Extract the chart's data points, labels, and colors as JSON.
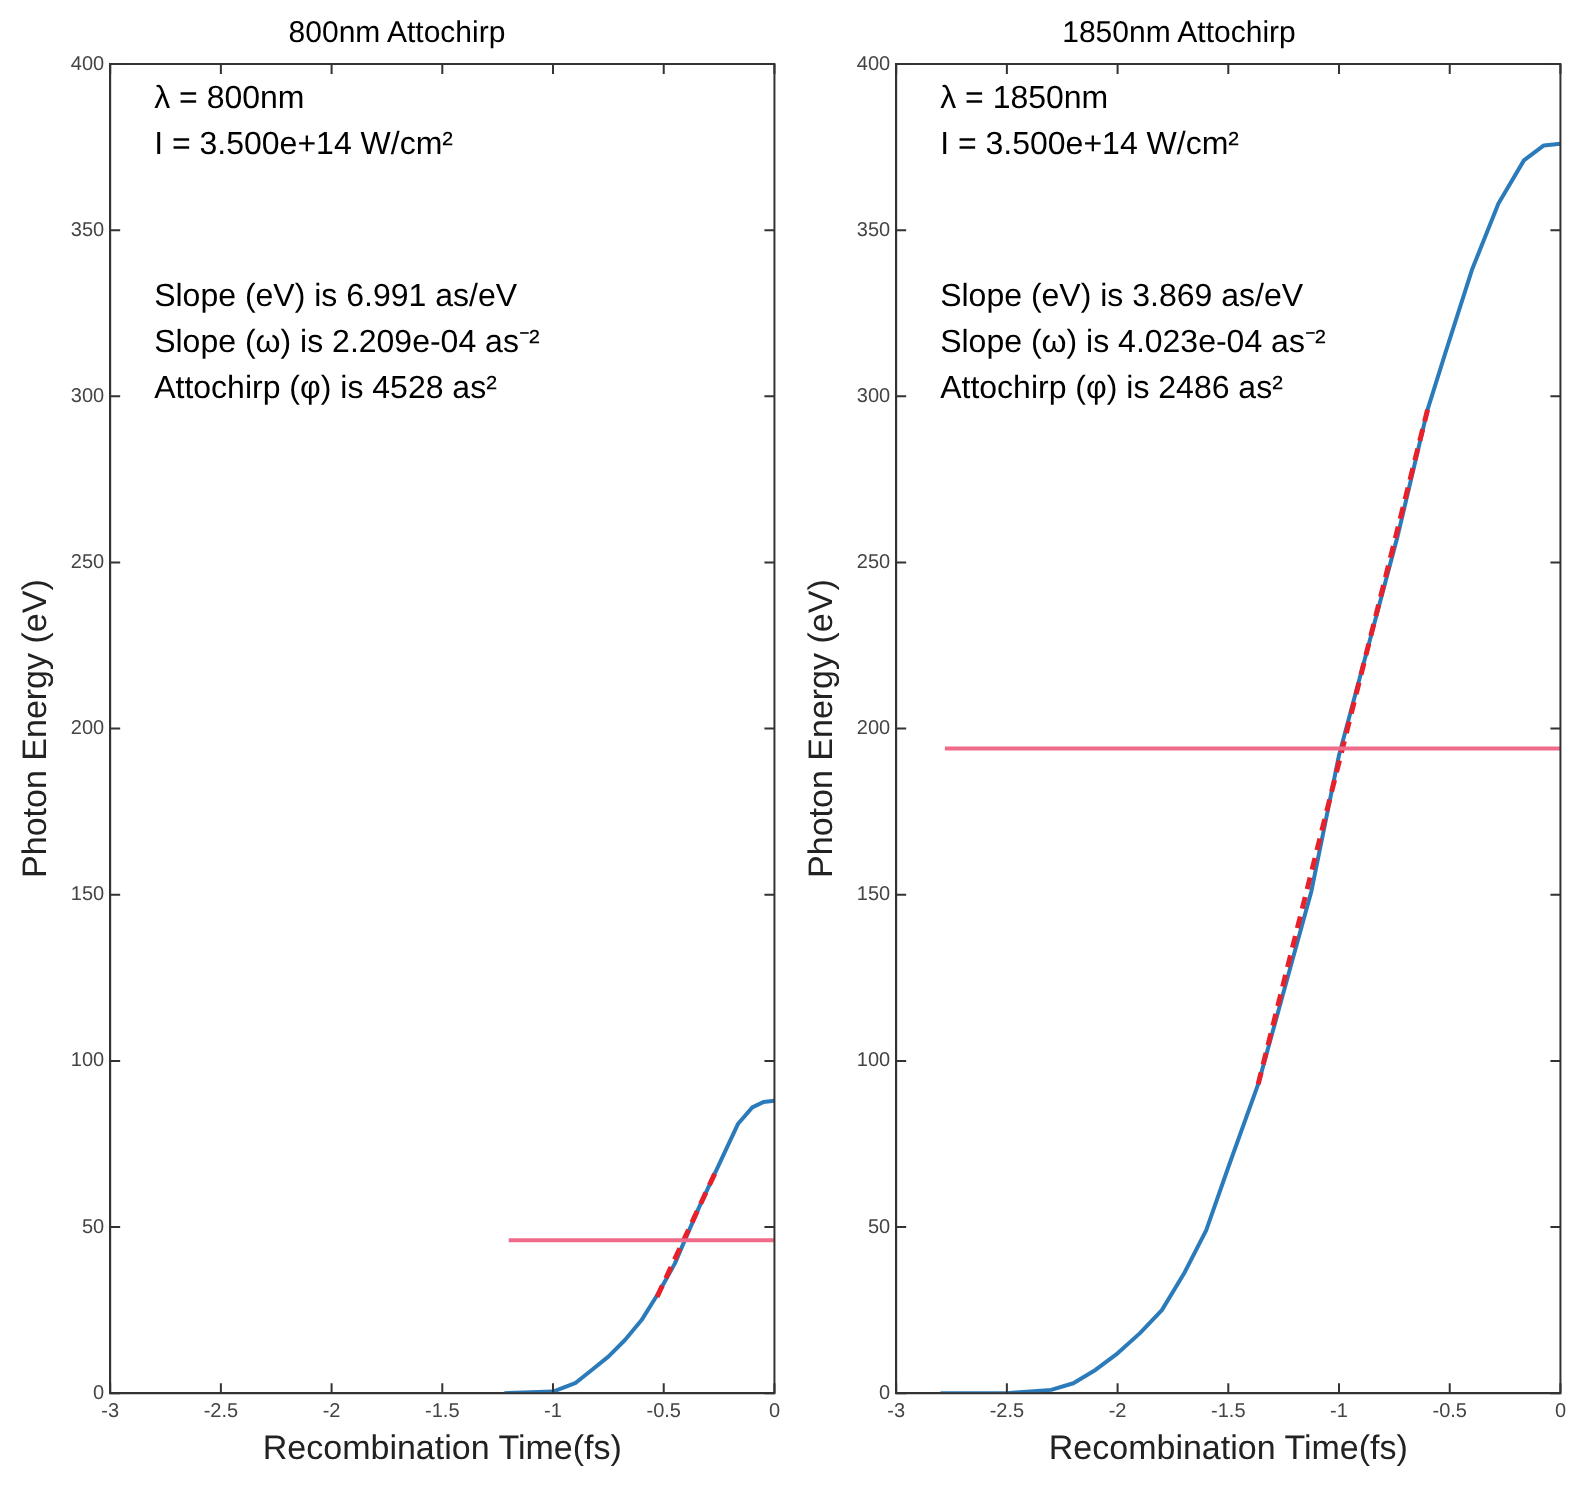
{
  "chart_data": [
    {
      "type": "line",
      "title": "800nm Attochirp",
      "xlabel": "Recombination Time(fs)",
      "ylabel": "Photon Energy (eV)",
      "marker": "none",
      "xlim": [
        -3,
        0
      ],
      "xticks": [
        -3,
        -2.5,
        -2,
        -1.5,
        -1,
        -0.5,
        0
      ],
      "ylim": [
        0,
        400
      ],
      "yticks": [
        0,
        50,
        100,
        150,
        200,
        250,
        300,
        350,
        400
      ],
      "annotations": [
        "λ = 800nm",
        "I = 3.500e+14 W/cm²",
        "Slope (eV) is 6.991 as/eV",
        "Slope (ω) is 2.209e-04 as⁻²",
        "Attochirp (φ) is 4528 as²"
      ],
      "series": [
        {
          "color": "#2b7bba",
          "x": [
            -1.22,
            -1,
            -0.9,
            -0.825,
            -0.75,
            -0.675,
            -0.6,
            -0.525,
            -0.45,
            -0.405,
            -0.34,
            -0.27,
            -0.2,
            -0.165,
            -0.1,
            -0.05,
            0
          ],
          "values": [
            0,
            0.5,
            3,
            7,
            11,
            16,
            22,
            30,
            39,
            46,
            56,
            66,
            76,
            81,
            86,
            87.6,
            88
          ]
        },
        {
          "color": "#e8202a",
          "line_style": "dashed",
          "x": [
            -0.53,
            -0.27
          ],
          "values": [
            29,
            66
          ]
        },
        {
          "color": "#f06a8a",
          "x": [
            -1.2,
            0
          ],
          "values": [
            46,
            46
          ]
        }
      ]
    },
    {
      "type": "line",
      "title": "1850nm Attochirp",
      "xlabel": "Recombination Time(fs)",
      "ylabel": "Photon Energy (eV)",
      "marker": "none",
      "xlim": [
        -3,
        0
      ],
      "xticks": [
        -3,
        -2.5,
        -2,
        -1.5,
        -1,
        -0.5,
        0
      ],
      "ylim": [
        0,
        400
      ],
      "yticks": [
        0,
        50,
        100,
        150,
        200,
        250,
        300,
        350,
        400
      ],
      "annotations": [
        "λ = 1850nm",
        "I = 3.500e+14 W/cm²",
        "Slope (eV) is 3.869 as/eV",
        "Slope (ω) is 4.023e-04 as⁻²",
        "Attochirp (φ) is 2486 as²"
      ],
      "series": [
        {
          "color": "#2b7bba",
          "x": [
            -2.8,
            -2.5,
            -2.3,
            -2.2,
            -2.1,
            -2,
            -1.9,
            -1.8,
            -1.7,
            -1.6,
            -1.5,
            -1.365,
            -1.245,
            -1.125,
            -1,
            -0.855,
            -0.735,
            -0.6,
            -0.52,
            -0.4,
            -0.28,
            -0.165,
            -0.075,
            0
          ],
          "values": [
            0,
            0,
            1,
            3,
            7,
            12,
            18,
            25,
            36,
            49,
            68,
            93,
            122,
            151,
            192,
            228,
            258,
            296,
            313,
            338,
            358,
            371,
            375.5,
            376
          ]
        },
        {
          "color": "#e8202a",
          "line_style": "dashed",
          "x": [
            -1.365,
            -0.6
          ],
          "values": [
            93,
            296
          ]
        },
        {
          "color": "#f06a8a",
          "x": [
            -2.78,
            0
          ],
          "values": [
            194,
            194
          ]
        }
      ]
    }
  ]
}
